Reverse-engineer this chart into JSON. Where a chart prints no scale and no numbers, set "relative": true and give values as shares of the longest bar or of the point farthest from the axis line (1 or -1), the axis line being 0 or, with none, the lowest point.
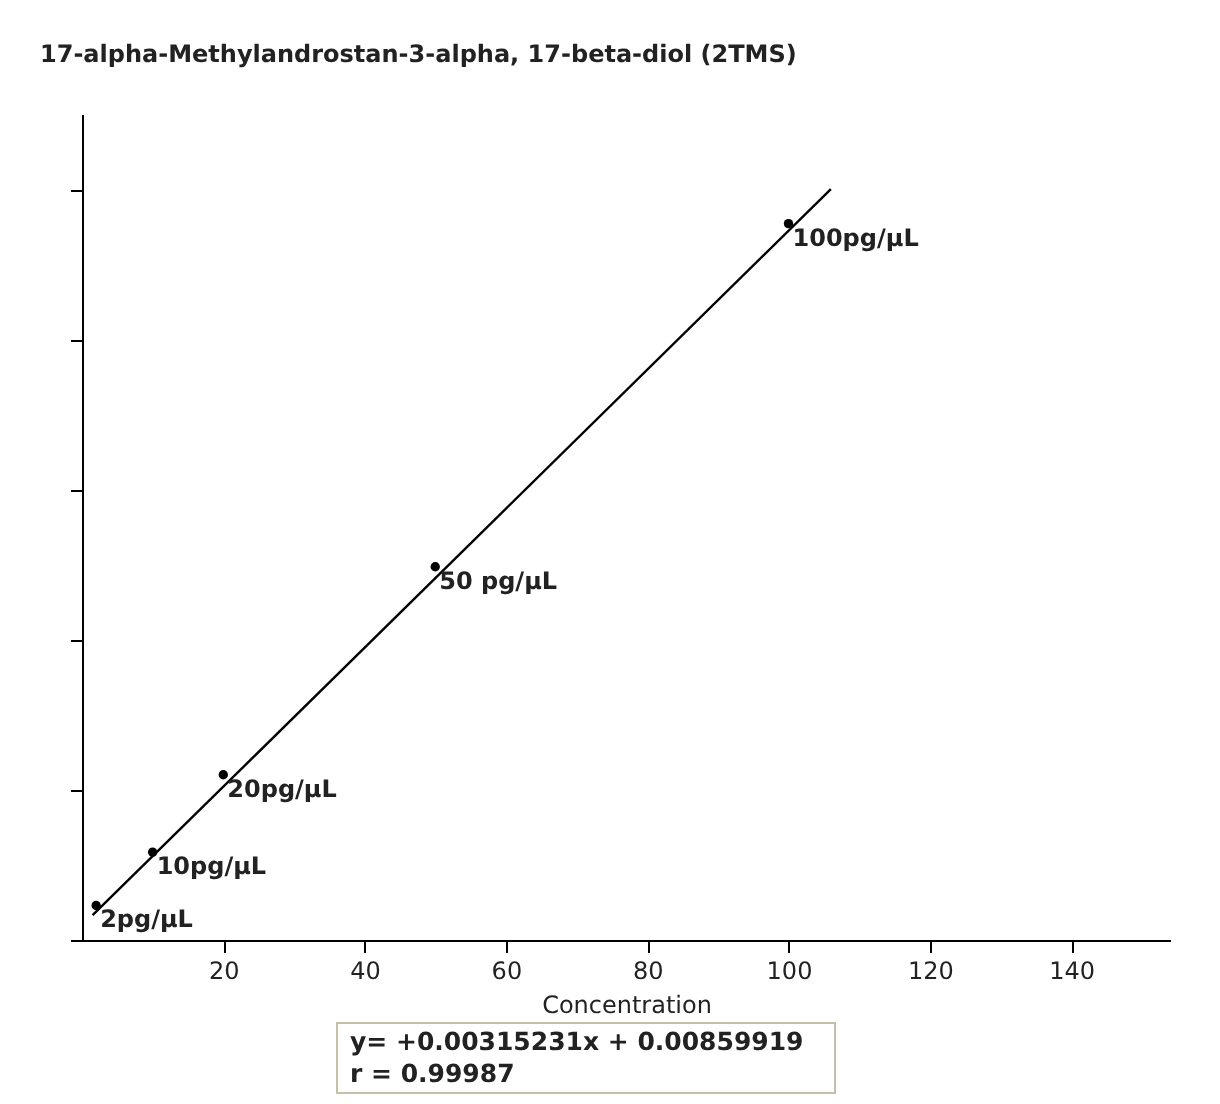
{
  "chart_data": {
    "type": "scatter",
    "title": "17-alpha-Methylandrostan-3-alpha, 17-beta-diol (2TMS)",
    "xlabel": "Concentration",
    "relative": true,
    "marker": "circle",
    "grid": false,
    "xlim": [
      0,
      154
    ],
    "xticks": [
      20,
      40,
      60,
      80,
      100,
      120,
      140
    ],
    "series": [
      {
        "color": "#000000",
        "x": [
          2,
          10,
          20,
          50,
          100
        ],
        "values": [
          0.046,
          0.117,
          0.22,
          0.497,
          0.954
        ]
      },
      {
        "type": "line",
        "color": "#000000",
        "marker": "none",
        "x": [
          1.5,
          106
        ],
        "values": [
          0.033,
          1
        ]
      }
    ],
    "annotations": [
      {
        "text": "2pg/µL",
        "x": 2,
        "y": 0.046
      },
      {
        "text": "10pg/µL",
        "x": 10,
        "y": 0.117
      },
      {
        "text": "20pg/µL",
        "x": 20,
        "y": 0.22
      },
      {
        "text": "50 pg/µL",
        "x": 50,
        "y": 0.497
      },
      {
        "text": "100pg/µL",
        "x": 100,
        "y": 0.954
      },
      "y= +0.00315231x + 0.00859919",
      "r = 0.99987"
    ]
  }
}
